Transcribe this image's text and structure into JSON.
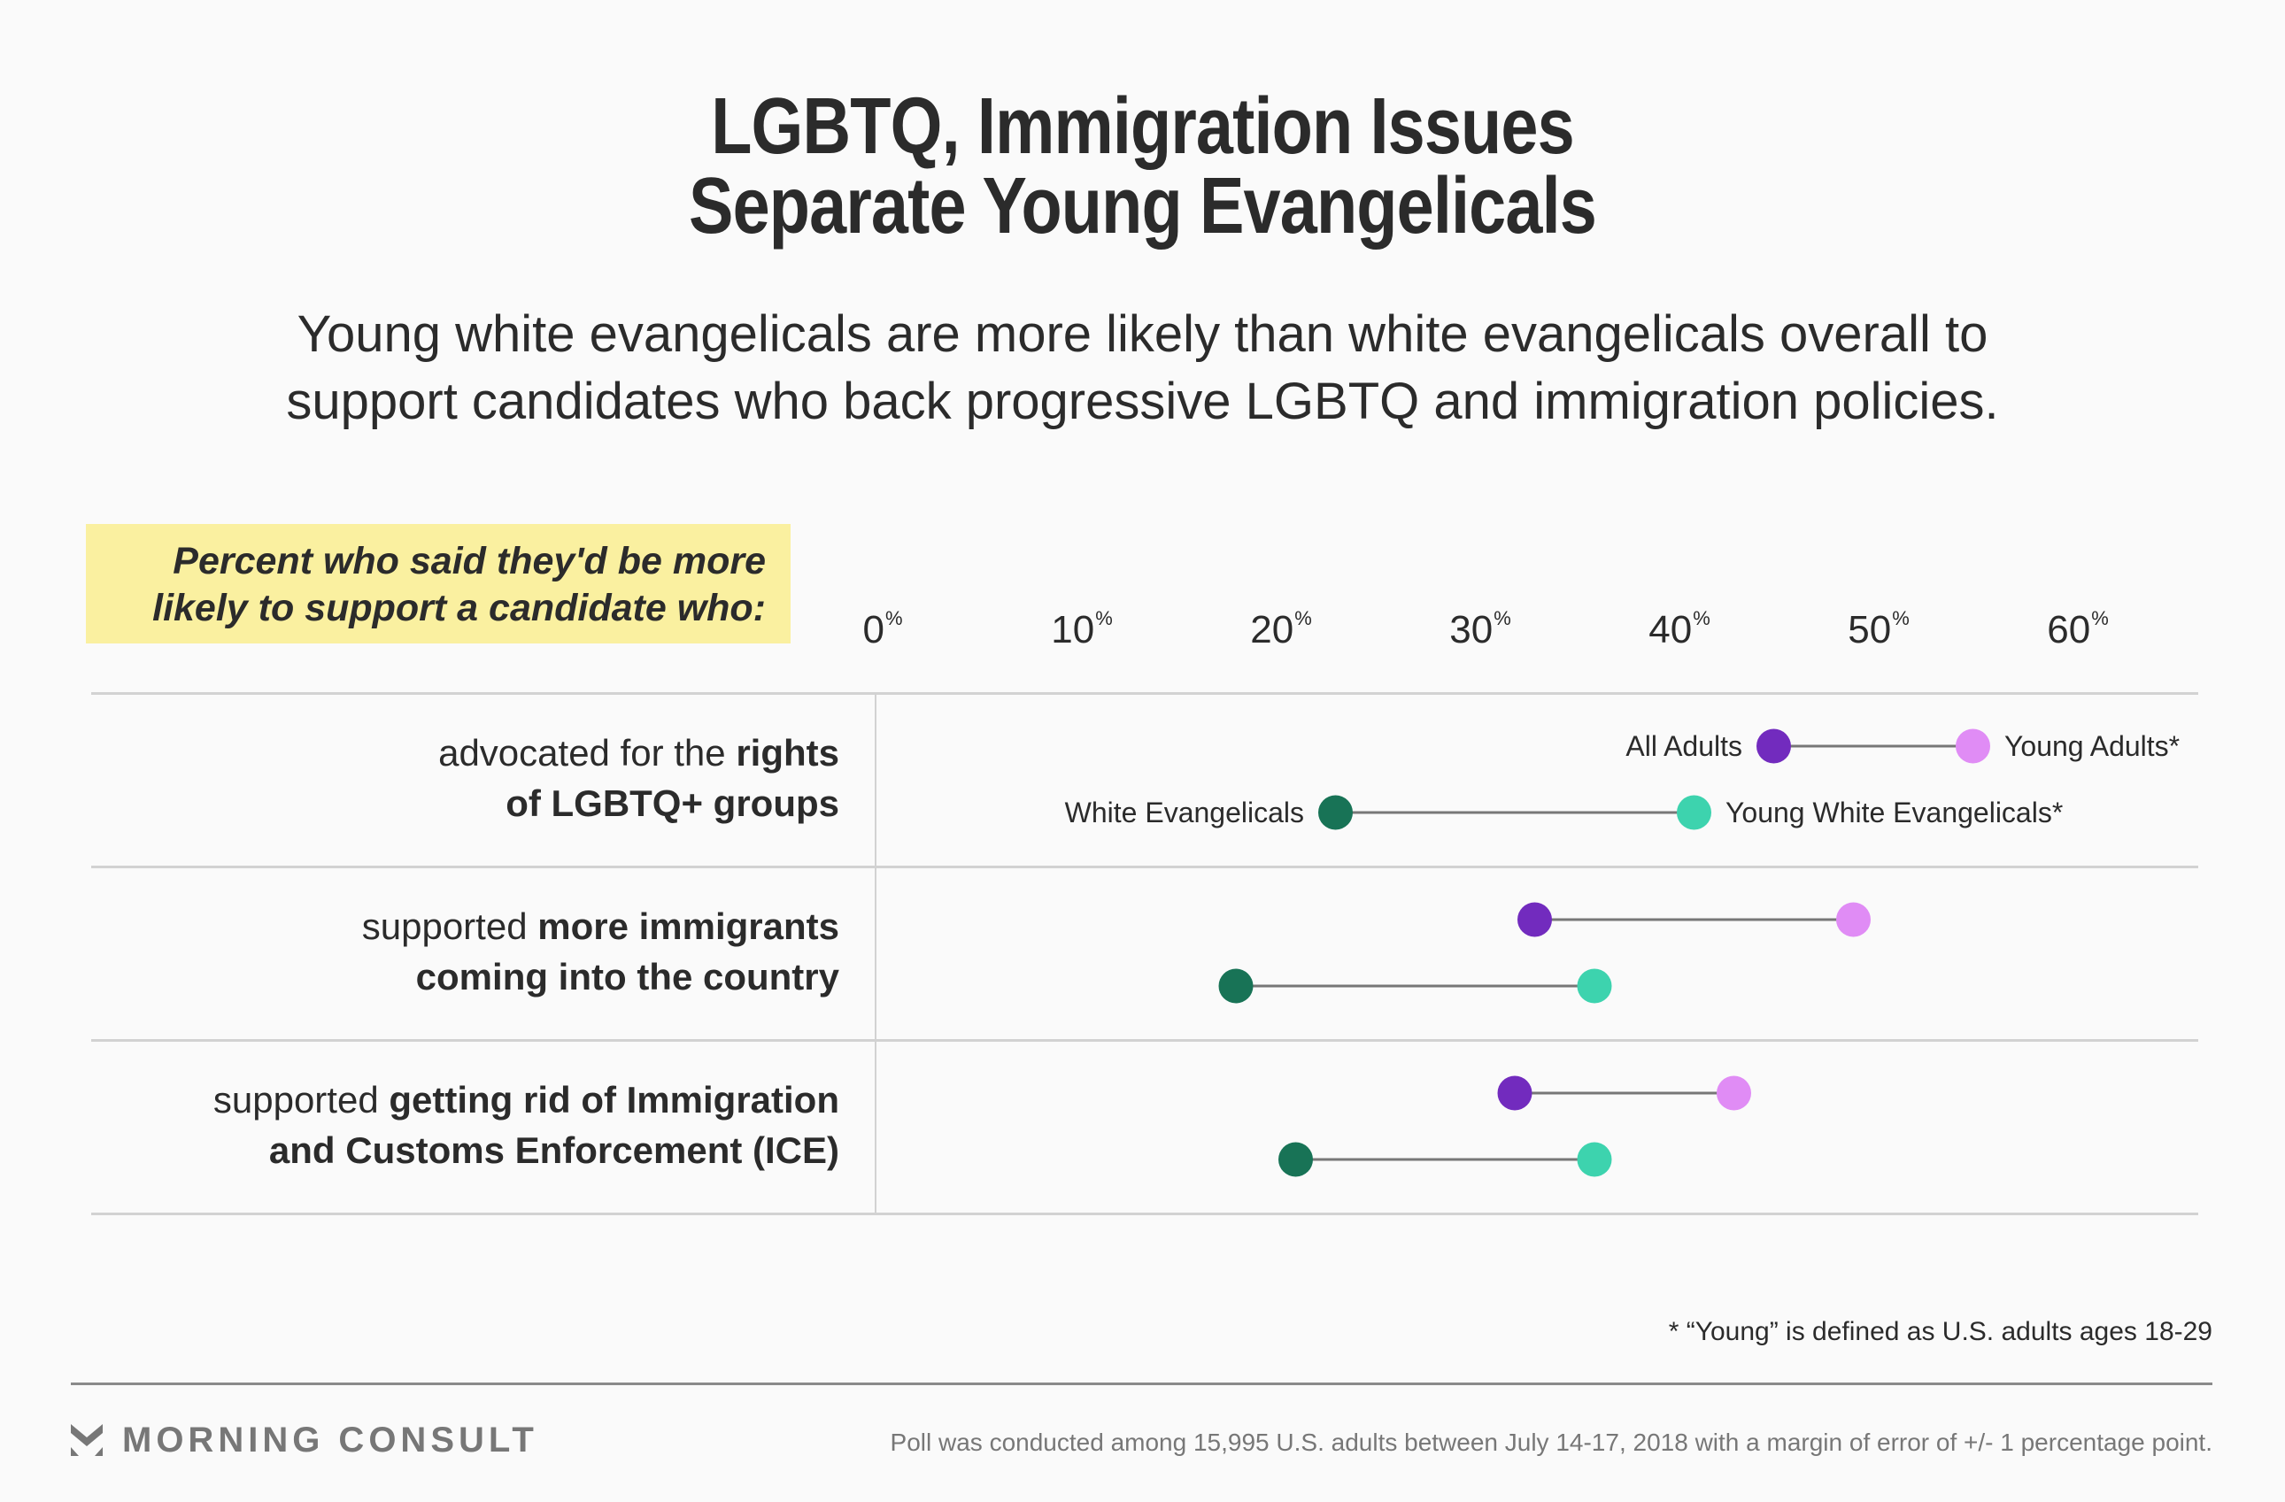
{
  "title": {
    "line1": "LGBTQ, Immigration Issues",
    "line2": "Separate Young Evangelicals"
  },
  "subtitle": {
    "line1": "Young white evangelicals are more likely than white evangelicals overall to",
    "line2": "support candidates who back progressive LGBTQ and immigration policies."
  },
  "header_box": {
    "line1": "Percent who said they'd be more",
    "line2": "likely to support a candidate who:"
  },
  "colors": {
    "all_adults": "#722bbe",
    "young_adults": "#e08cf5",
    "white_evangelicals": "#187356",
    "young_white_evangelicals": "#3dd3ae",
    "connector": "#777777",
    "highlight": "#faf0a0"
  },
  "rows": [
    {
      "label_line1_plain": "advocated for the ",
      "label_line1_bold": "rights",
      "label_line2_plain": "",
      "label_line2_bold": "of LGBTQ+ groups"
    },
    {
      "label_line1_plain": "supported ",
      "label_line1_bold": "more immigrants",
      "label_line2_plain": "",
      "label_line2_bold": "coming into the country"
    },
    {
      "label_line1_plain": "supported ",
      "label_line1_bold": "getting rid of Immigration",
      "label_line2_plain": "",
      "label_line2_bold": "and Customs Enforcement (ICE)"
    }
  ],
  "chart_data": {
    "type": "dumbbell",
    "title": "LGBTQ, Immigration Issues Separate Young Evangelicals",
    "subtitle": "Young white evangelicals are more likely than white evangelicals overall to support candidates who back progressive LGBTQ and immigration policies.",
    "xlabel": "Percent who said they'd be more likely to support a candidate who:",
    "xlim": [
      0,
      60
    ],
    "x_ticks": [
      0,
      10,
      20,
      30,
      40,
      50,
      60
    ],
    "tick_suffix": "%",
    "grid": false,
    "categories": [
      "advocated for the rights of LGBTQ+ groups",
      "supported more immigrants coming into the country",
      "supported getting rid of Immigration and Customs Enforcement (ICE)"
    ],
    "pairs": [
      {
        "from": "All Adults",
        "to": "Young Adults*"
      },
      {
        "from": "White Evangelicals",
        "to": "Young White Evangelicals*"
      }
    ],
    "series": [
      {
        "name": "All Adults",
        "values": [
          45,
          33,
          32
        ]
      },
      {
        "name": "Young Adults*",
        "values": [
          55,
          49,
          43
        ]
      },
      {
        "name": "White Evangelicals",
        "values": [
          23,
          18,
          21
        ]
      },
      {
        "name": "Young White Evangelicals*",
        "values": [
          41,
          36,
          36
        ]
      }
    ],
    "legend_placement": "inline-first-row"
  },
  "footnote": "* “Young” is defined as U.S. adults ages 18-29",
  "footer": {
    "brand": "MORNING CONSULT",
    "poll_note": "Poll was conducted among 15,995 U.S. adults between July 14-17, 2018 with a margin of error of +/- 1 percentage point."
  }
}
